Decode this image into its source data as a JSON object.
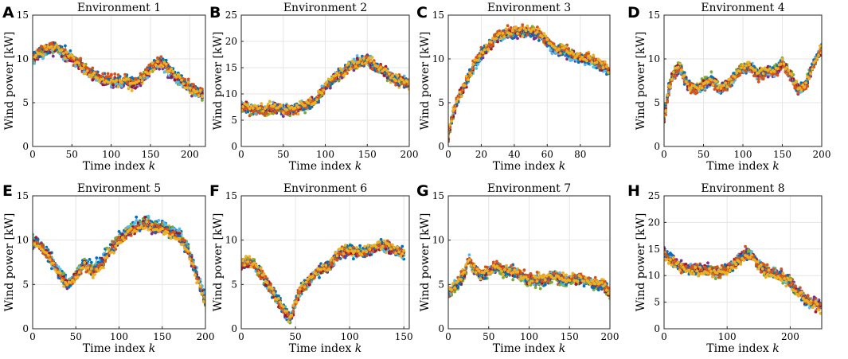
{
  "figure": {
    "xlabel": "Time index",
    "xlabel_var": "k",
    "ylabel": "Wind power [kW]"
  },
  "colors": [
    "#0072BD",
    "#D95319",
    "#EDB120",
    "#7E2F8E",
    "#77AC30",
    "#4DBEEE",
    "#A2142F"
  ],
  "chart_data": [
    {
      "panel": "A",
      "type": "line",
      "title": "Environment 1",
      "xlim": [
        0,
        220
      ],
      "ylim": [
        0,
        15
      ],
      "xticks": [
        0,
        50,
        100,
        150,
        200
      ],
      "yticks": [
        0,
        5,
        10,
        15
      ],
      "grid": true,
      "n_series": 10,
      "series_trend": {
        "x": [
          0,
          10,
          20,
          30,
          40,
          50,
          60,
          70,
          80,
          90,
          100,
          110,
          120,
          130,
          140,
          150,
          160,
          170,
          180,
          190,
          200,
          210,
          218
        ],
        "y": [
          10,
          10.5,
          11,
          11.2,
          10.5,
          10,
          9.2,
          8.5,
          8,
          7.5,
          7.5,
          7.2,
          7.3,
          7,
          7.8,
          8.8,
          9.5,
          9,
          8,
          7.5,
          6.5,
          6,
          5.5
        ]
      }
    },
    {
      "panel": "B",
      "type": "line",
      "title": "Environment 2",
      "xlim": [
        0,
        200
      ],
      "ylim": [
        0,
        25
      ],
      "xticks": [
        0,
        50,
        100,
        150,
        200
      ],
      "yticks": [
        0,
        5,
        10,
        15,
        20,
        25
      ],
      "grid": true,
      "n_series": 10,
      "series_trend": {
        "x": [
          0,
          10,
          20,
          30,
          40,
          50,
          60,
          70,
          80,
          90,
          100,
          110,
          120,
          130,
          140,
          150,
          160,
          170,
          180,
          190,
          200
        ],
        "y": [
          7.5,
          7.2,
          7,
          7,
          7.5,
          7,
          7,
          7.5,
          8,
          9,
          11.5,
          13,
          14,
          15.5,
          16,
          16.5,
          15,
          14.5,
          13,
          12.5,
          12
        ]
      }
    },
    {
      "panel": "C",
      "type": "line",
      "title": "Environment 3",
      "xlim": [
        0,
        98
      ],
      "ylim": [
        0,
        15
      ],
      "xticks": [
        0,
        20,
        40,
        60,
        80
      ],
      "yticks": [
        0,
        5,
        10,
        15
      ],
      "grid": true,
      "n_series": 10,
      "series_trend": {
        "x": [
          0,
          2,
          5,
          10,
          15,
          20,
          25,
          30,
          35,
          40,
          45,
          50,
          55,
          60,
          65,
          70,
          75,
          80,
          85,
          90,
          95,
          97
        ],
        "y": [
          1,
          3,
          5,
          7,
          9,
          10.5,
          11.5,
          12.5,
          13,
          13,
          13,
          13.2,
          12.8,
          12,
          11,
          11,
          10.5,
          10,
          10,
          9.5,
          9,
          8.5
        ]
      }
    },
    {
      "panel": "D",
      "type": "line",
      "title": "Environment 4",
      "xlim": [
        0,
        200
      ],
      "ylim": [
        0,
        15
      ],
      "xticks": [
        0,
        50,
        100,
        150,
        200
      ],
      "yticks": [
        0,
        5,
        10,
        15
      ],
      "grid": true,
      "n_series": 10,
      "series_trend": {
        "x": [
          0,
          5,
          10,
          20,
          30,
          40,
          50,
          60,
          70,
          80,
          90,
          100,
          110,
          120,
          130,
          140,
          150,
          160,
          170,
          180,
          190,
          200
        ],
        "y": [
          3,
          6,
          8,
          9,
          7,
          6.5,
          7,
          7.5,
          6.5,
          7,
          8,
          9,
          9,
          8,
          8.5,
          8.5,
          9.5,
          8,
          6.5,
          7,
          9.5,
          11
        ]
      }
    },
    {
      "panel": "E",
      "type": "line",
      "title": "Environment 5",
      "xlim": [
        0,
        200
      ],
      "ylim": [
        0,
        15
      ],
      "xticks": [
        0,
        50,
        100,
        150,
        200
      ],
      "yticks": [
        0,
        5,
        10,
        15
      ],
      "grid": true,
      "n_series": 10,
      "series_trend": {
        "x": [
          0,
          10,
          20,
          30,
          40,
          50,
          60,
          70,
          80,
          90,
          100,
          110,
          120,
          130,
          140,
          150,
          160,
          170,
          180,
          190,
          200
        ],
        "y": [
          10,
          9.5,
          8,
          6.5,
          5,
          6,
          7.5,
          6.5,
          7.5,
          9,
          10,
          11,
          11.5,
          12,
          11.5,
          11.5,
          11,
          10.5,
          9,
          6,
          3
        ]
      }
    },
    {
      "panel": "F",
      "type": "line",
      "title": "Environment 6",
      "xlim": [
        0,
        155
      ],
      "ylim": [
        0,
        15
      ],
      "xticks": [
        0,
        50,
        100,
        150
      ],
      "yticks": [
        0,
        5,
        10,
        15
      ],
      "grid": true,
      "n_series": 10,
      "series_trend": {
        "x": [
          0,
          10,
          20,
          30,
          35,
          40,
          45,
          50,
          55,
          60,
          70,
          80,
          90,
          100,
          110,
          120,
          130,
          140,
          150
        ],
        "y": [
          7.5,
          7.5,
          6,
          4,
          3,
          2,
          1,
          3,
          4.5,
          5,
          6.5,
          7,
          8.5,
          9,
          8.5,
          9,
          9.5,
          9,
          8.5
        ]
      }
    },
    {
      "panel": "G",
      "type": "line",
      "title": "Environment 7",
      "xlim": [
        0,
        200
      ],
      "ylim": [
        0,
        15
      ],
      "xticks": [
        0,
        50,
        100,
        150,
        200
      ],
      "yticks": [
        0,
        5,
        10,
        15
      ],
      "grid": true,
      "n_series": 10,
      "series_trend": {
        "x": [
          0,
          10,
          20,
          25,
          30,
          40,
          50,
          60,
          70,
          80,
          90,
          100,
          110,
          120,
          130,
          140,
          150,
          160,
          170,
          180,
          190,
          200
        ],
        "y": [
          4,
          5,
          6,
          8,
          7,
          6,
          6.5,
          7,
          6.5,
          6.5,
          6,
          5.5,
          5.5,
          5.5,
          6,
          5.5,
          5.5,
          5.5,
          5.5,
          5,
          5,
          4
        ]
      }
    },
    {
      "panel": "H",
      "type": "line",
      "title": "Environment 8",
      "xlim": [
        0,
        250
      ],
      "ylim": [
        0,
        25
      ],
      "xticks": [
        0,
        100,
        200
      ],
      "yticks": [
        0,
        5,
        10,
        15,
        20,
        25
      ],
      "grid": true,
      "n_series": 10,
      "series_trend": {
        "x": [
          0,
          10,
          20,
          30,
          40,
          50,
          60,
          70,
          80,
          90,
          100,
          110,
          120,
          130,
          140,
          150,
          160,
          170,
          180,
          190,
          200,
          210,
          220,
          230,
          240,
          248
        ],
        "y": [
          14,
          13,
          12,
          11.5,
          11,
          11,
          11,
          11,
          10.5,
          10.5,
          11,
          12,
          13,
          14,
          13.5,
          12,
          11,
          10.5,
          10,
          9.5,
          8.5,
          7,
          6,
          5,
          4.5,
          4
        ]
      }
    }
  ]
}
